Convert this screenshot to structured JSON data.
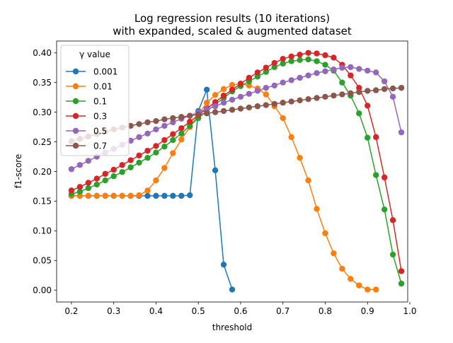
{
  "chart_data": {
    "type": "line",
    "title": [
      "Log regression results (10 iterations)",
      "with expanded, scaled & augmented dataset"
    ],
    "xlabel": "threshold",
    "ylabel": "f1-score",
    "xlim": [
      0.165,
      0.995
    ],
    "ylim": [
      -0.02,
      0.42
    ],
    "xticks": [
      0.2,
      0.3,
      0.4,
      0.5,
      0.6,
      0.7,
      0.8,
      0.9,
      1.0
    ],
    "xtick_labels": [
      "0.2",
      "0.3",
      "0.4",
      "0.5",
      "0.6",
      "0.7",
      "0.8",
      "0.9",
      "1.0"
    ],
    "yticks": [
      0.0,
      0.05,
      0.1,
      0.15,
      0.2,
      0.25,
      0.3,
      0.35,
      0.4
    ],
    "ytick_labels": [
      "0.00",
      "0.05",
      "0.10",
      "0.15",
      "0.20",
      "0.25",
      "0.30",
      "0.35",
      "0.40"
    ],
    "grid": false,
    "legend": {
      "title": "γ value",
      "position": "top-left"
    },
    "marker": "circle",
    "series": [
      {
        "name": "0.001",
        "color": "#1f77b4",
        "x": [
          0.2,
          0.22,
          0.24,
          0.26,
          0.28,
          0.3,
          0.32,
          0.34,
          0.36,
          0.38,
          0.4,
          0.42,
          0.44,
          0.46,
          0.48,
          0.5,
          0.52,
          0.54,
          0.56,
          0.58
        ],
        "y": [
          0.159,
          0.159,
          0.159,
          0.159,
          0.159,
          0.159,
          0.159,
          0.159,
          0.159,
          0.159,
          0.159,
          0.159,
          0.159,
          0.159,
          0.16,
          0.302,
          0.338,
          0.202,
          0.043,
          0.001
        ]
      },
      {
        "name": "0.01",
        "color": "#ff7f0e",
        "x": [
          0.2,
          0.22,
          0.24,
          0.26,
          0.28,
          0.3,
          0.32,
          0.34,
          0.36,
          0.38,
          0.4,
          0.42,
          0.44,
          0.46,
          0.48,
          0.5,
          0.52,
          0.54,
          0.56,
          0.58,
          0.6,
          0.62,
          0.64,
          0.66,
          0.68,
          0.7,
          0.72,
          0.74,
          0.76,
          0.78,
          0.8,
          0.82,
          0.84,
          0.86,
          0.88,
          0.9,
          0.92
        ],
        "y": [
          0.159,
          0.159,
          0.159,
          0.159,
          0.159,
          0.159,
          0.159,
          0.159,
          0.16,
          0.168,
          0.185,
          0.206,
          0.231,
          0.254,
          0.275,
          0.296,
          0.316,
          0.329,
          0.339,
          0.346,
          0.348,
          0.345,
          0.34,
          0.33,
          0.31,
          0.29,
          0.258,
          0.223,
          0.185,
          0.137,
          0.096,
          0.062,
          0.036,
          0.019,
          0.008,
          0.001,
          0.001
        ]
      },
      {
        "name": "0.1",
        "color": "#2ca02c",
        "x": [
          0.2,
          0.22,
          0.24,
          0.26,
          0.28,
          0.3,
          0.32,
          0.34,
          0.36,
          0.38,
          0.4,
          0.42,
          0.44,
          0.46,
          0.48,
          0.5,
          0.52,
          0.54,
          0.56,
          0.58,
          0.6,
          0.62,
          0.64,
          0.66,
          0.68,
          0.7,
          0.72,
          0.74,
          0.76,
          0.78,
          0.8,
          0.82,
          0.84,
          0.86,
          0.88,
          0.9,
          0.92,
          0.94,
          0.96,
          0.98
        ],
        "y": [
          0.162,
          0.166,
          0.172,
          0.178,
          0.185,
          0.192,
          0.199,
          0.207,
          0.215,
          0.223,
          0.232,
          0.242,
          0.253,
          0.264,
          0.277,
          0.29,
          0.302,
          0.313,
          0.324,
          0.335,
          0.344,
          0.352,
          0.36,
          0.368,
          0.376,
          0.382,
          0.386,
          0.388,
          0.389,
          0.386,
          0.38,
          0.37,
          0.35,
          0.328,
          0.298,
          0.257,
          0.194,
          0.136,
          0.06,
          0.011
        ]
      },
      {
        "name": "0.3",
        "color": "#d62728",
        "x": [
          0.2,
          0.22,
          0.24,
          0.26,
          0.28,
          0.3,
          0.32,
          0.34,
          0.36,
          0.38,
          0.4,
          0.42,
          0.44,
          0.46,
          0.48,
          0.5,
          0.52,
          0.54,
          0.56,
          0.58,
          0.6,
          0.62,
          0.64,
          0.66,
          0.68,
          0.7,
          0.72,
          0.74,
          0.76,
          0.78,
          0.8,
          0.82,
          0.84,
          0.86,
          0.88,
          0.9,
          0.92,
          0.94,
          0.96,
          0.98
        ],
        "y": [
          0.168,
          0.174,
          0.181,
          0.188,
          0.196,
          0.203,
          0.211,
          0.219,
          0.227,
          0.235,
          0.243,
          0.253,
          0.263,
          0.273,
          0.284,
          0.295,
          0.306,
          0.317,
          0.328,
          0.338,
          0.348,
          0.358,
          0.367,
          0.375,
          0.383,
          0.39,
          0.394,
          0.397,
          0.4,
          0.399,
          0.396,
          0.392,
          0.38,
          0.362,
          0.341,
          0.311,
          0.258,
          0.19,
          0.118,
          0.032
        ]
      },
      {
        "name": "0.5",
        "color": "#9467bd",
        "x": [
          0.2,
          0.22,
          0.24,
          0.26,
          0.28,
          0.3,
          0.32,
          0.34,
          0.36,
          0.38,
          0.4,
          0.42,
          0.44,
          0.46,
          0.48,
          0.5,
          0.52,
          0.54,
          0.56,
          0.58,
          0.6,
          0.62,
          0.64,
          0.66,
          0.68,
          0.7,
          0.72,
          0.74,
          0.76,
          0.78,
          0.8,
          0.82,
          0.84,
          0.86,
          0.88,
          0.9,
          0.92,
          0.94,
          0.96,
          0.98
        ],
        "y": [
          0.204,
          0.211,
          0.218,
          0.225,
          0.232,
          0.238,
          0.245,
          0.252,
          0.258,
          0.264,
          0.271,
          0.277,
          0.283,
          0.289,
          0.294,
          0.3,
          0.305,
          0.31,
          0.316,
          0.321,
          0.326,
          0.331,
          0.336,
          0.341,
          0.345,
          0.35,
          0.354,
          0.358,
          0.362,
          0.366,
          0.369,
          0.372,
          0.375,
          0.376,
          0.373,
          0.37,
          0.367,
          0.352,
          0.326,
          0.266
        ]
      },
      {
        "name": "0.7",
        "color": "#8c564b",
        "x": [
          0.2,
          0.22,
          0.24,
          0.26,
          0.28,
          0.3,
          0.32,
          0.34,
          0.36,
          0.38,
          0.4,
          0.42,
          0.44,
          0.46,
          0.48,
          0.5,
          0.52,
          0.54,
          0.56,
          0.58,
          0.6,
          0.62,
          0.64,
          0.66,
          0.68,
          0.7,
          0.72,
          0.74,
          0.76,
          0.78,
          0.8,
          0.82,
          0.84,
          0.86,
          0.88,
          0.9,
          0.92,
          0.94,
          0.96,
          0.98
        ],
        "y": [
          0.251,
          0.255,
          0.259,
          0.263,
          0.267,
          0.271,
          0.274,
          0.277,
          0.28,
          0.283,
          0.285,
          0.288,
          0.29,
          0.292,
          0.294,
          0.296,
          0.298,
          0.3,
          0.302,
          0.304,
          0.306,
          0.308,
          0.31,
          0.312,
          0.314,
          0.316,
          0.318,
          0.32,
          0.322,
          0.324,
          0.326,
          0.328,
          0.33,
          0.332,
          0.334,
          0.336,
          0.337,
          0.339,
          0.34,
          0.341
        ]
      }
    ]
  }
}
